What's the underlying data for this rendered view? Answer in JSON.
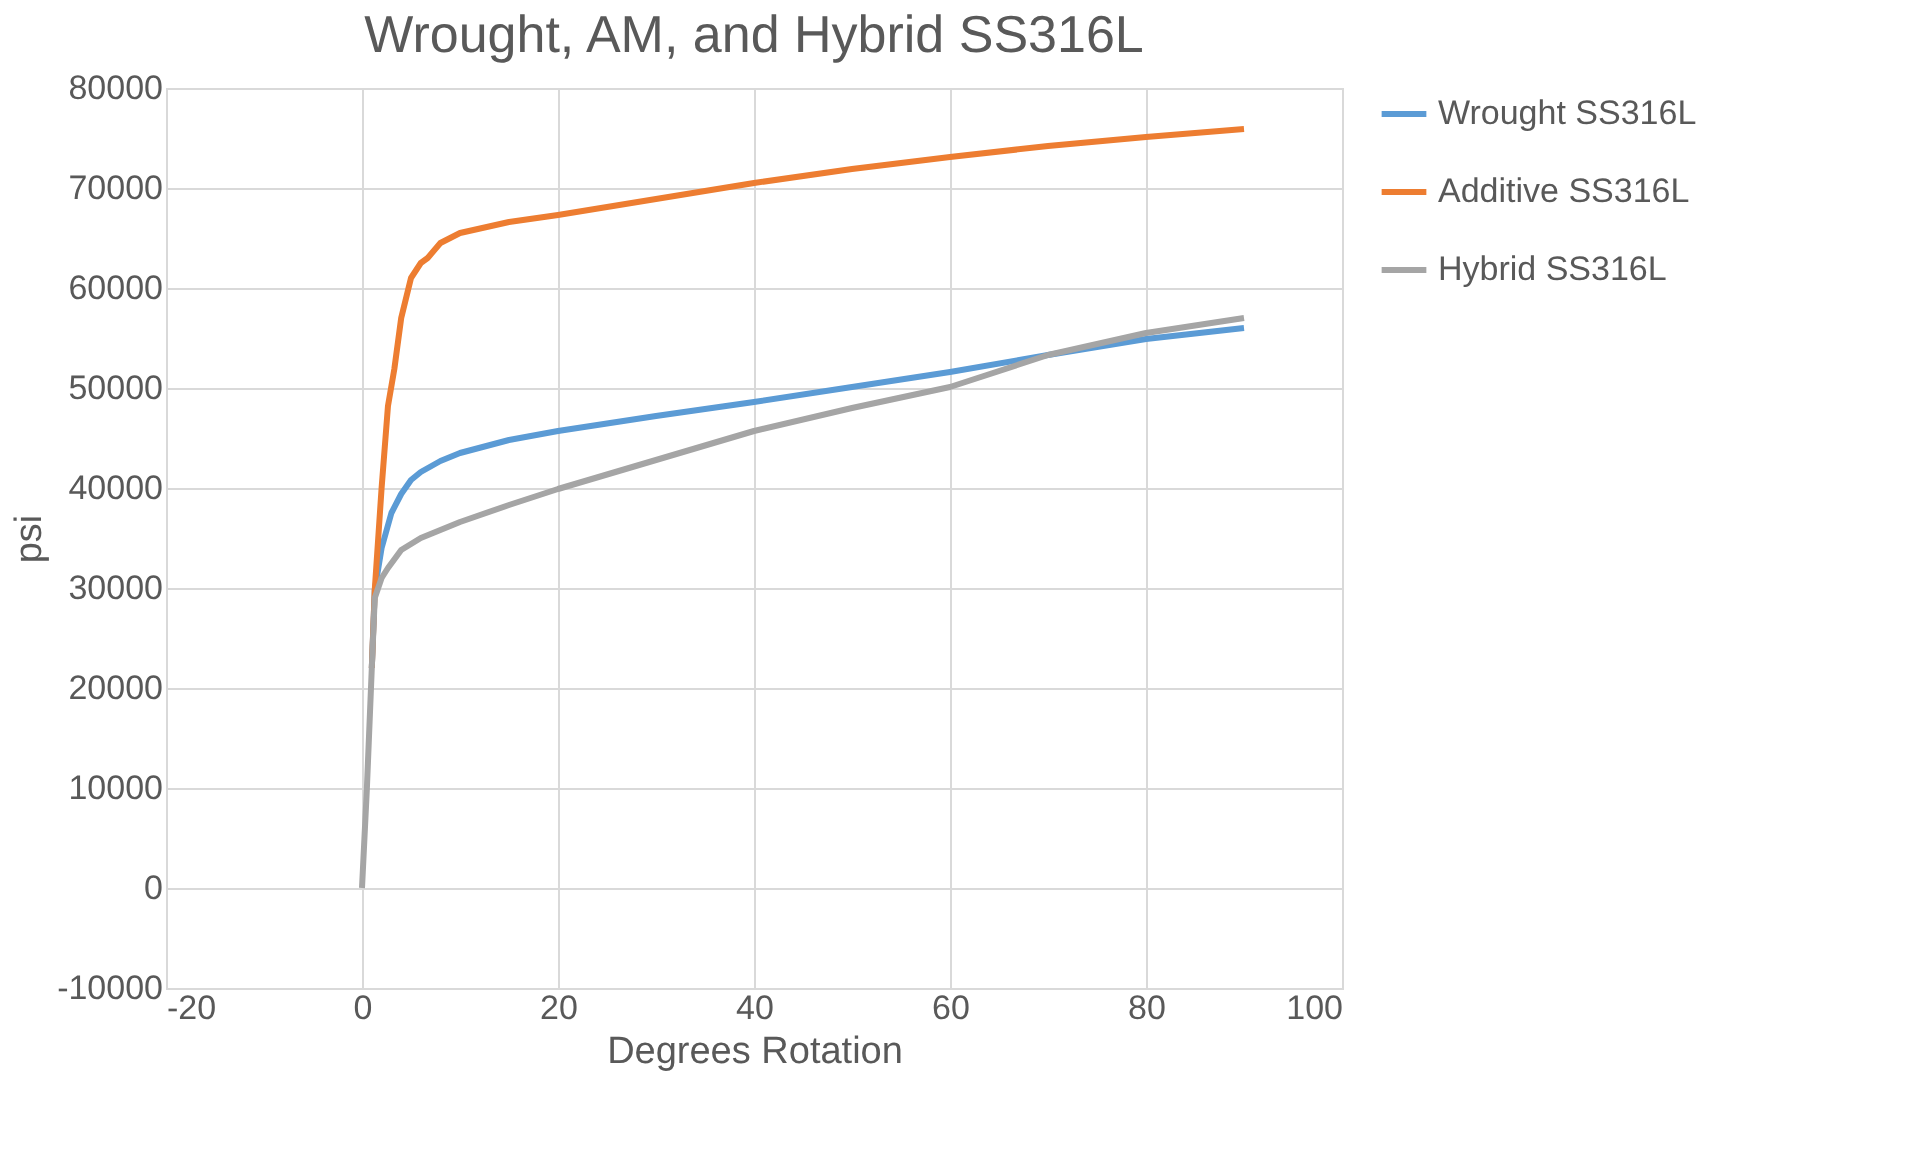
{
  "chart_data": {
    "type": "line",
    "title": "Wrought, AM, and Hybrid SS316L",
    "xlabel": "Degrees Rotation",
    "ylabel": "psi",
    "xlim": [
      -20,
      100
    ],
    "xticks": [
      -20,
      0,
      20,
      40,
      60,
      80,
      100
    ],
    "ylim": [
      -10000,
      80000
    ],
    "yticks": [
      -10000,
      0,
      10000,
      20000,
      30000,
      40000,
      50000,
      60000,
      70000,
      80000
    ],
    "grid": true,
    "legend": "right",
    "marker": "none",
    "line_style": "solid",
    "series": [
      {
        "name": "Wrought SS316L",
        "color": "#5b9bd5",
        "x": [
          1,
          1.3,
          2,
          3,
          4,
          5,
          6,
          8,
          10,
          15,
          20,
          30,
          40,
          50,
          60,
          70,
          80,
          90
        ],
        "values": [
          22000,
          29800,
          34000,
          37500,
          39400,
          40800,
          41600,
          42700,
          43500,
          44800,
          45700,
          47200,
          48600,
          50100,
          51600,
          53300,
          54900,
          56000
        ]
      },
      {
        "name": "Additive SS316L",
        "color": "#ed7d31",
        "x": [
          1,
          1.3,
          2,
          2.65,
          3.3,
          4,
          5,
          6,
          6.7,
          8,
          10,
          15,
          20,
          30,
          40,
          50,
          60,
          70,
          80,
          90
        ],
        "values": [
          22000,
          29800,
          40000,
          48200,
          51900,
          57000,
          61000,
          62500,
          63000,
          64500,
          65500,
          66600,
          67300,
          68900,
          70500,
          71900,
          73100,
          74200,
          75100,
          75900
        ]
      },
      {
        "name": "Hybrid SS316L",
        "color": "#a5a5a5",
        "x": [
          0,
          0.5,
          1,
          1.3,
          2,
          2.65,
          4,
          6,
          8,
          10,
          15,
          20,
          30,
          40,
          50,
          60,
          70,
          80,
          90
        ],
        "values": [
          0,
          10000,
          22000,
          29000,
          31000,
          32000,
          33800,
          35000,
          35800,
          36600,
          38300,
          39900,
          42800,
          45700,
          48000,
          50100,
          53300,
          55500,
          57000
        ]
      }
    ]
  }
}
